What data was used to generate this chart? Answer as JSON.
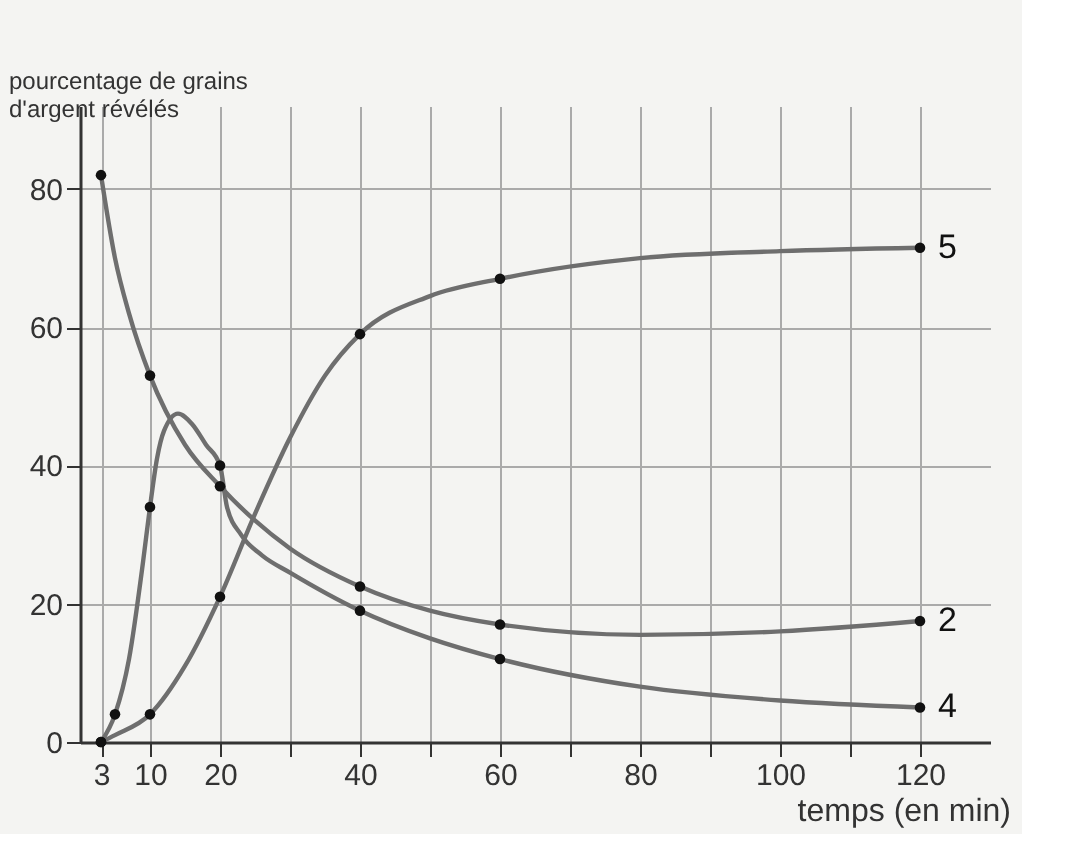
{
  "chart_data": {
    "type": "line",
    "ylabel": "pourcentage de grains d'argent révélés",
    "xlabel": "temps (en min)",
    "xlim": [
      0,
      130
    ],
    "ylim": [
      0,
      92
    ],
    "xticks": [
      3,
      10,
      20,
      {
        "value": 30,
        "label": null
      },
      40,
      {
        "value": 50,
        "label": null
      },
      60,
      {
        "value": 70,
        "label": null
      },
      80,
      {
        "value": 90,
        "label": null
      },
      100,
      {
        "value": 110,
        "label": null
      },
      120
    ],
    "yticks": [
      0,
      20,
      40,
      60,
      80
    ],
    "grid": true,
    "line_style": "solid",
    "marker": "none",
    "series": [
      {
        "name": "2",
        "color": "#6e6e6e",
        "x": [
          3,
          5,
          7,
          10,
          15,
          20,
          30,
          40,
          50,
          60,
          80,
          100,
          120
        ],
        "values": [
          82,
          70,
          62,
          53,
          43,
          37,
          28,
          22.5,
          19,
          17,
          15.5,
          16,
          17.5
        ]
      },
      {
        "name": "4",
        "color": "#6e6e6e",
        "x": [
          3,
          5,
          7,
          9,
          10,
          11,
          12,
          14,
          16,
          18,
          20,
          21,
          23,
          26,
          30,
          40,
          50,
          60,
          80,
          100,
          120
        ],
        "values": [
          0,
          4,
          12,
          26,
          34,
          41,
          45,
          47.5,
          46,
          43,
          40,
          34,
          30,
          27,
          24.5,
          19,
          15,
          12,
          8,
          6,
          5
        ]
      },
      {
        "name": "5",
        "color": "#6e6e6e",
        "x": [
          3,
          5,
          10,
          15,
          20,
          25,
          30,
          35,
          40,
          50,
          60,
          80,
          100,
          120
        ],
        "values": [
          0,
          1,
          4,
          11,
          21,
          33,
          44,
          53,
          59,
          64.5,
          67,
          70,
          71,
          71.5
        ]
      },
      {
        "type": "scatter",
        "marker": "circle",
        "color": "#111111",
        "x": [
          3,
          10,
          20,
          40,
          60,
          120
        ],
        "values": [
          82,
          53,
          37,
          22.5,
          17,
          17.5
        ]
      },
      {
        "type": "scatter",
        "marker": "circle",
        "color": "#111111",
        "x": [
          3,
          5,
          10,
          20,
          40,
          60,
          120
        ],
        "values": [
          0,
          4,
          34,
          40,
          19,
          12,
          5
        ]
      },
      {
        "type": "scatter",
        "marker": "circle",
        "color": "#111111",
        "x": [
          3,
          10,
          20,
          40,
          60,
          120
        ],
        "values": [
          0,
          4,
          21,
          59,
          67,
          71.5
        ]
      }
    ]
  }
}
